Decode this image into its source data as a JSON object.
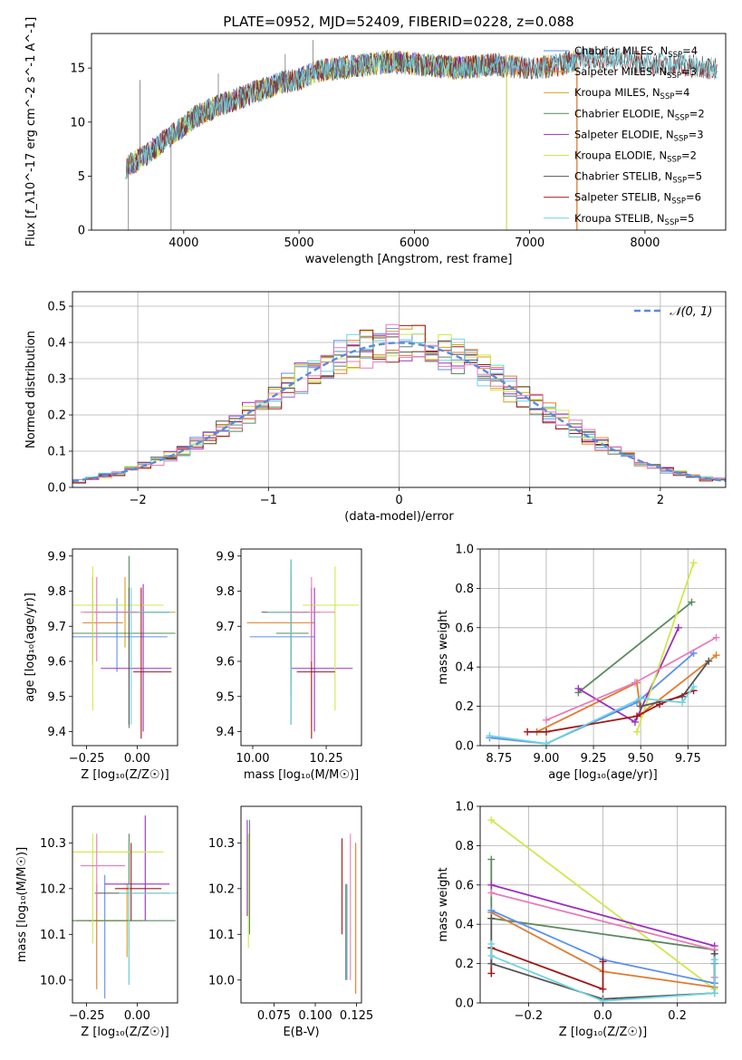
{
  "title": "PLATE=0952, MJD=52409, FIBERID=0228, z=0.088",
  "colors": {
    "Chabrier MILES": "#5b8ff0",
    "Salpeter MILES": "#e07b2c",
    "Kroupa MILES": "#d4a017",
    "Chabrier ELODIE": "#5a8a5e",
    "Salpeter ELODIE": "#9b30c0",
    "Kroupa ELODIE": "#cfe84a",
    "Chabrier STELIB": "#555555",
    "Salpeter STELIB": "#a01818",
    "Kroupa STELIB": "#6fd3e0",
    "pink": "#e87cb8",
    "normal": "#5b8ad8"
  },
  "chart_data": [
    {
      "type": "line",
      "id": "spectrum",
      "xlabel": "wavelength [Angstrom, rest frame]",
      "ylabel": "Flux [f_λ10^-17 erg cm^-2 s^-1 A^-1]",
      "xlim": [
        3200,
        8700
      ],
      "ylim": [
        0,
        18.2
      ],
      "xticks": [
        4000,
        5000,
        6000,
        7000,
        8000
      ],
      "yticks": [
        0,
        5,
        10,
        15
      ],
      "spectrum_anchors": {
        "x": [
          3500,
          3700,
          3900,
          4100,
          4300,
          4500,
          4800,
          5000,
          5200,
          5500,
          5800,
          6100,
          6400,
          6700,
          7000,
          7200,
          7400,
          7600,
          7800,
          8000,
          8200,
          8400,
          8600
        ],
        "y": [
          5.8,
          7.2,
          8.8,
          10.5,
          11.5,
          12.3,
          13.5,
          14.0,
          14.8,
          15.2,
          15.6,
          15.3,
          15.0,
          15.3,
          15.0,
          15.2,
          15.7,
          16.0,
          15.8,
          15.4,
          15.4,
          15.2,
          15.0
        ]
      },
      "legend": [
        {
          "label": "Chabrier MILES, N",
          "sub": "SSP",
          "tail": "=4"
        },
        {
          "label": "Salpeter MILES, N",
          "sub": "SSP",
          "tail": "=3"
        },
        {
          "label": "Kroupa MILES, N",
          "sub": "SSP",
          "tail": "=4"
        },
        {
          "label": "Chabrier ELODIE, N",
          "sub": "SSP",
          "tail": "=2"
        },
        {
          "label": "Salpeter ELODIE, N",
          "sub": "SSP",
          "tail": "=3"
        },
        {
          "label": "Kroupa ELODIE, N",
          "sub": "SSP",
          "tail": "=2"
        },
        {
          "label": "Chabrier STELIB, N",
          "sub": "SSP",
          "tail": "=5"
        },
        {
          "label": "Salpeter STELIB, N",
          "sub": "SSP",
          "tail": "=6"
        },
        {
          "label": "Kroupa STELIB, N",
          "sub": "SSP",
          "tail": "=5"
        }
      ]
    },
    {
      "type": "histogram",
      "id": "residuals",
      "xlabel": "(data-model)/error",
      "ylabel": "Normed distribution",
      "xlim": [
        -2.5,
        2.5
      ],
      "ylim": [
        0,
        0.54
      ],
      "xticks": [
        -2,
        -1,
        0,
        1,
        2
      ],
      "yticks": [
        0.0,
        0.1,
        0.2,
        0.3,
        0.4,
        0.5
      ],
      "legend": "𝒩(0, 1)",
      "legend_position": "top-right",
      "grid": true,
      "bin_width": 0.1
    },
    {
      "type": "scatter",
      "id": "age-vs-Z",
      "xlabel": "Z [log₁₀(Z/Z☉)]",
      "ylabel": "age  [log₁₀(age/yr)]",
      "xlim": [
        -0.32,
        0.2
      ],
      "ylim": [
        9.36,
        9.92
      ],
      "xticks": [
        -0.25,
        0.0
      ],
      "yticks": [
        9.4,
        9.5,
        9.6,
        9.7,
        9.8,
        9.9
      ],
      "points": [
        {
          "model": "Chabrier MILES",
          "x": -0.1,
          "xerr": [
            0.22,
            0.25
          ],
          "y": 9.67,
          "yerr": [
            0.1,
            0.11
          ]
        },
        {
          "model": "Salpeter MILES",
          "x": -0.22,
          "xerr": [
            0.05,
            0.15
          ],
          "y": 9.71,
          "yerr": [
            0.12,
            0.13
          ]
        },
        {
          "model": "Kroupa MILES",
          "x": -0.06,
          "xerr": [
            0.2,
            0.25
          ],
          "y": 9.74,
          "yerr": [
            0.1,
            0.1
          ]
        },
        {
          "model": "Chabrier ELODIE",
          "x": -0.04,
          "xerr": [
            0.28,
            0.23
          ],
          "y": 9.68,
          "yerr": [
            0.27,
            0.22
          ]
        },
        {
          "model": "Salpeter ELODIE",
          "x": 0.03,
          "xerr": [
            0.21,
            0.14
          ],
          "y": 9.58,
          "yerr": [
            0.18,
            0.24
          ]
        },
        {
          "model": "Kroupa ELODIE",
          "x": -0.22,
          "xerr": [
            0.1,
            0.35
          ],
          "y": 9.76,
          "yerr": [
            0.3,
            0.11
          ]
        },
        {
          "model": "Chabrier STELIB",
          "x": -0.04,
          "xerr": [
            0.17,
            0.2
          ],
          "y": 9.74,
          "yerr": [
            0.32,
            0.07
          ]
        },
        {
          "model": "Salpeter STELIB",
          "x": 0.02,
          "xerr": [
            0.04,
            0.15
          ],
          "y": 9.57,
          "yerr": [
            0.19,
            0.24
          ]
        },
        {
          "model": "Kroupa STELIB",
          "x": -0.03,
          "xerr": [
            0.17,
            0.2
          ],
          "y": 9.74,
          "yerr": [
            0.32,
            0.07
          ]
        },
        {
          "model": "pink",
          "x": -0.2,
          "xerr": [
            0.08,
            0.2
          ],
          "y": 9.74,
          "yerr": [
            0.14,
            0.1
          ]
        }
      ]
    },
    {
      "type": "scatter",
      "id": "age-vs-mass",
      "xlabel": "mass [log₁₀(M/M☉)]",
      "ylabel": "",
      "xlim": [
        9.96,
        10.37
      ],
      "ylim": [
        9.36,
        9.92
      ],
      "xticks": [
        10.0,
        10.25
      ],
      "yticks": [
        9.4,
        9.5,
        9.6,
        9.7,
        9.8,
        9.9
      ],
      "points": [
        {
          "model": "Chabrier MILES",
          "x": 10.13,
          "xerr": [
            0.14,
            0.08
          ],
          "y": 9.67,
          "yerr": [
            0.1,
            0.11
          ]
        },
        {
          "model": "Salpeter MILES",
          "x": 10.13,
          "xerr": [
            0.15,
            0.08
          ],
          "y": 9.71,
          "yerr": [
            0.17,
            0.14
          ]
        },
        {
          "model": "Kroupa MILES",
          "x": 10.13,
          "xerr": [
            0.08,
            0.1
          ],
          "y": 9.74,
          "yerr": [
            0.1,
            0.1
          ]
        },
        {
          "model": "Chabrier ELODIE",
          "x": 10.13,
          "xerr": [
            0.05,
            0.06
          ],
          "y": 9.68,
          "yerr": [
            0.18,
            0.21
          ]
        },
        {
          "model": "Salpeter ELODIE",
          "x": 10.21,
          "xerr": [
            0.08,
            0.13
          ],
          "y": 9.58,
          "yerr": [
            0.18,
            0.23
          ]
        },
        {
          "model": "Kroupa ELODIE",
          "x": 10.28,
          "xerr": [
            0.11,
            0.08
          ],
          "y": 9.76,
          "yerr": [
            0.3,
            0.11
          ]
        },
        {
          "model": "Chabrier STELIB",
          "x": 10.13,
          "xerr": [
            0.1,
            0.06
          ],
          "y": 9.74,
          "yerr": [
            0.32,
            0.15
          ]
        },
        {
          "model": "Salpeter STELIB",
          "x": 10.2,
          "xerr": [
            0.05,
            0.08
          ],
          "y": 9.57,
          "yerr": [
            0.19,
            0.24
          ]
        },
        {
          "model": "Kroupa STELIB",
          "x": 10.13,
          "xerr": [
            0.08,
            0.06
          ],
          "y": 9.74,
          "yerr": [
            0.32,
            0.15
          ]
        },
        {
          "model": "pink",
          "x": 10.2,
          "xerr": [
            0.08,
            0.08
          ],
          "y": 9.74,
          "yerr": [
            0.14,
            0.1
          ]
        }
      ]
    },
    {
      "type": "line",
      "id": "weight-vs-age",
      "xlabel": "age  [log₁₀(age/yr)]",
      "ylabel": "mass weight",
      "xlim": [
        8.65,
        9.95
      ],
      "ylim": [
        0,
        1.0
      ],
      "xticks": [
        8.75,
        9.0,
        9.25,
        9.5,
        9.75
      ],
      "yticks": [
        0.0,
        0.2,
        0.4,
        0.6,
        0.8,
        1.0
      ],
      "grid": true,
      "series": [
        {
          "model": "Chabrier MILES",
          "x": [
            8.7,
            9.0,
            9.48,
            9.78
          ],
          "y": [
            0.04,
            0.01,
            0.22,
            0.47
          ]
        },
        {
          "model": "Salpeter MILES",
          "x": [
            8.95,
            9.48,
            9.5,
            9.9
          ],
          "y": [
            0.07,
            0.32,
            0.16,
            0.46
          ]
        },
        {
          "model": "Chabrier ELODIE",
          "x": [
            9.17,
            9.77
          ],
          "y": [
            0.27,
            0.73
          ]
        },
        {
          "model": "Salpeter ELODIE",
          "x": [
            9.17,
            9.47,
            9.7
          ],
          "y": [
            0.29,
            0.12,
            0.6
          ]
        },
        {
          "model": "Kroupa ELODIE",
          "x": [
            9.48,
            9.78
          ],
          "y": [
            0.07,
            0.93
          ]
        },
        {
          "model": "Chabrier STELIB",
          "x": [
            9.5,
            9.72,
            9.86
          ],
          "y": [
            0.2,
            0.25,
            0.43
          ]
        },
        {
          "model": "Salpeter STELIB",
          "x": [
            8.9,
            9.0,
            9.48,
            9.6,
            9.78
          ],
          "y": [
            0.07,
            0.07,
            0.15,
            0.21,
            0.28
          ]
        },
        {
          "model": "Kroupa STELIB",
          "x": [
            8.7,
            9.0,
            9.5,
            9.72,
            9.78
          ],
          "y": [
            0.05,
            0.01,
            0.24,
            0.22,
            0.3
          ]
        },
        {
          "model": "pink",
          "x": [
            9.0,
            9.47,
            9.9
          ],
          "y": [
            0.13,
            0.32,
            0.55
          ]
        }
      ]
    },
    {
      "type": "scatter",
      "id": "mass-vs-Z",
      "xlabel": "Z [log₁₀(Z/Z☉)]",
      "ylabel": "mass [log₁₀(M/M☉)]",
      "xlim": [
        -0.32,
        0.2
      ],
      "ylim": [
        9.95,
        10.38
      ],
      "xticks": [
        -0.25,
        0.0
      ],
      "yticks": [
        10.0,
        10.1,
        10.2,
        10.3
      ],
      "points": [
        {
          "model": "Chabrier MILES",
          "x": -0.16,
          "xerr": [
            0.08,
            0.08
          ],
          "y": 10.13,
          "yerr": [
            0.17,
            0.1
          ]
        },
        {
          "model": "Salpeter MILES",
          "x": -0.2,
          "xerr": [
            0.1,
            0.15
          ],
          "y": 10.13,
          "yerr": [
            0.15,
            0.08
          ]
        },
        {
          "model": "Kroupa MILES",
          "x": -0.05,
          "xerr": [
            0.2,
            0.08
          ],
          "y": 10.13,
          "yerr": [
            0.08,
            0.08
          ]
        },
        {
          "model": "Chabrier ELODIE",
          "x": -0.04,
          "xerr": [
            0.28,
            0.23
          ],
          "y": 10.13,
          "yerr": [
            0.06,
            0.19
          ]
        },
        {
          "model": "Salpeter ELODIE",
          "x": 0.04,
          "xerr": [
            0.2,
            0.12
          ],
          "y": 10.21,
          "yerr": [
            0.08,
            0.15
          ]
        },
        {
          "model": "Kroupa ELODIE",
          "x": -0.22,
          "xerr": [
            0.1,
            0.35
          ],
          "y": 10.28,
          "yerr": [
            0.2,
            0.04
          ]
        },
        {
          "model": "Chabrier STELIB",
          "x": -0.04,
          "xerr": [
            0.17,
            0.2
          ],
          "y": 10.19,
          "yerr": [
            0.2,
            0.02
          ]
        },
        {
          "model": "Salpeter STELIB",
          "x": -0.03,
          "xerr": [
            0.08,
            0.15
          ],
          "y": 10.2,
          "yerr": [
            0.07,
            0.1
          ]
        },
        {
          "model": "Kroupa STELIB",
          "x": -0.04,
          "xerr": [
            0.05,
            0.24
          ],
          "y": 10.19,
          "yerr": [
            0.2,
            0.02
          ]
        },
        {
          "model": "pink",
          "x": -0.2,
          "xerr": [
            0.08,
            0.14
          ],
          "y": 10.25,
          "yerr": [
            0.1,
            0.07
          ]
        }
      ]
    },
    {
      "type": "scatter",
      "id": "mass-vs-EBV",
      "xlabel": "E(B-V)",
      "ylabel": "",
      "xlim": [
        0.055,
        0.128
      ],
      "ylim": [
        9.95,
        10.38
      ],
      "xticks": [
        0.075,
        0.1,
        0.125
      ],
      "yticks": [
        10.0,
        10.1,
        10.2,
        10.3
      ],
      "points": [
        {
          "model": "Salpeter ELODIE",
          "x": 0.0588,
          "yerr": [
            0.08,
            0.13
          ],
          "y": 10.22
        },
        {
          "model": "Kroupa ELODIE",
          "x": 0.0595,
          "yerr": [
            0.1,
            0.15
          ],
          "y": 10.17
        },
        {
          "model": "Chabrier ELODIE",
          "x": 0.0602,
          "yerr": [
            0.1,
            0.15
          ],
          "y": 10.2
        },
        {
          "model": "Salpeter STELIB",
          "x": 0.1162,
          "yerr": [
            0.1,
            0.11
          ],
          "y": 10.2
        },
        {
          "model": "Chabrier STELIB",
          "x": 0.1186,
          "yerr": [
            0.18,
            0.03
          ],
          "y": 10.18
        },
        {
          "model": "Kroupa STELIB",
          "x": 0.1193,
          "yerr": [
            0.18,
            0.03
          ],
          "y": 10.18
        },
        {
          "model": "pink",
          "x": 0.1213,
          "yerr": [
            0.2,
            0.12
          ],
          "y": 10.2
        },
        {
          "model": "Salpeter MILES",
          "x": 0.1245,
          "yerr": [
            0.28,
            0.05
          ],
          "y": 10.25
        }
      ]
    },
    {
      "type": "line",
      "id": "weight-vs-Z",
      "xlabel": "Z [log₁₀(Z/Z☉)]",
      "ylabel": "mass weight",
      "xlim": [
        -0.33,
        0.33
      ],
      "ylim": [
        0,
        1.0
      ],
      "xticks": [
        -0.2,
        0.0,
        0.2
      ],
      "yticks": [
        0.0,
        0.2,
        0.4,
        0.6,
        0.8,
        1.0
      ],
      "grid": true,
      "series": [
        {
          "model": "Kroupa ELODIE",
          "x": [
            -0.3,
            0.3
          ],
          "y": [
            0.93,
            0.07
          ]
        },
        {
          "model": "Chabrier ELODIE",
          "x": [
            -0.3,
            -0.3,
            0.3,
            0.3
          ],
          "y": [
            0.73,
            0.43,
            0.27,
            0.27
          ]
        },
        {
          "model": "Salpeter ELODIE",
          "x": [
            -0.3,
            0.3,
            0.3
          ],
          "y": [
            0.6,
            0.29,
            0.1
          ]
        },
        {
          "model": "pink",
          "x": [
            -0.3,
            0.3,
            0.3
          ],
          "y": [
            0.56,
            0.27,
            0.13
          ]
        },
        {
          "model": "Salpeter MILES",
          "x": [
            -0.3,
            0.0,
            0.3
          ],
          "y": [
            0.46,
            0.16,
            0.08
          ]
        },
        {
          "model": "Chabrier MILES",
          "x": [
            -0.3,
            0.0,
            0.3,
            0.3
          ],
          "y": [
            0.47,
            0.22,
            0.1,
            0.2
          ]
        },
        {
          "model": "Salpeter STELIB",
          "x": [
            -0.3,
            -0.3,
            0.0,
            0.0
          ],
          "y": [
            0.15,
            0.28,
            0.07,
            0.21
          ]
        },
        {
          "model": "Chabrier STELIB",
          "x": [
            -0.3,
            -0.3,
            0.0,
            0.3,
            0.3
          ],
          "y": [
            0.43,
            0.2,
            0.02,
            0.05,
            0.25
          ]
        },
        {
          "model": "Kroupa STELIB",
          "x": [
            -0.3,
            -0.3,
            0.0,
            0.3,
            0.3
          ],
          "y": [
            0.3,
            0.24,
            0.01,
            0.05,
            0.22
          ]
        }
      ]
    }
  ]
}
